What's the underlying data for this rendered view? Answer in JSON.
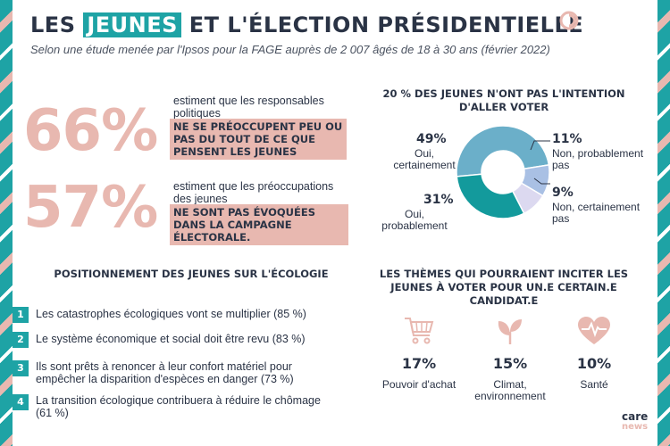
{
  "header": {
    "title_pre": "LES",
    "title_highlight": "JEUNES",
    "title_post": "ET L'ÉLECTION PRÉSIDENTIELLE",
    "subtitle": "Selon une étude menée par l'Ipsos pour la FAGE auprès de 2 007 âgés de 18 à 30 ans (février 2022)"
  },
  "stats": [
    {
      "percent": "66%",
      "intro": "estiment que les responsables politiques",
      "highlight": "NE SE PRÉOCCUPENT PEU OU PAS DU TOUT DE CE QUE PENSENT LES JEUNES"
    },
    {
      "percent": "57%",
      "intro": "estiment que les préoccupations des jeunes",
      "highlight": "NE SONT PAS ÉVOQUÉES DANS LA CAMPAGNE ÉLECTORALE."
    }
  ],
  "chart_data": {
    "type": "pie",
    "title": "20 % DES JEUNES N'ONT PAS L'INTENTION D'ALLER VOTER",
    "slices": [
      {
        "pct_label": "49%",
        "label": "Oui, certainement",
        "value": 49,
        "color": "#6bafc9"
      },
      {
        "pct_label": "11%",
        "label": "Non, probablement pas",
        "value": 11,
        "color": "#a9c0e4"
      },
      {
        "pct_label": "9%",
        "label": "Non, certainement pas",
        "value": 9,
        "color": "#dcd9f0"
      },
      {
        "pct_label": "31%",
        "label": "Oui, probablement",
        "value": 31,
        "color": "#139a9c"
      }
    ]
  },
  "ecology": {
    "title": "POSITIONNEMENT DES JEUNES SUR L'ÉCOLOGIE",
    "items": [
      {
        "num": "1",
        "text": "Les catastrophes écologiques vont se multiplier (85 %)"
      },
      {
        "num": "2",
        "text": "Le système économique et social doit être revu (83 %)"
      },
      {
        "num": "3",
        "text": "Ils sont prêts à renoncer à leur confort matériel pour empêcher la disparition d'espèces en danger (73 %)"
      },
      {
        "num": "4",
        "text": "La transition écologique contribuera à réduire le chômage (61 %)"
      }
    ]
  },
  "themes": {
    "title": "LES THÈMES QUI POURRAIENT INCITER LES JEUNES À VOTER POUR UN.E CERTAIN.E CANDIDAT.E",
    "items": [
      {
        "icon": "shopping-cart-icon",
        "pct": "17%",
        "label": "Pouvoir d'achat"
      },
      {
        "icon": "plant-icon",
        "pct": "15%",
        "label": "Climat, environnement"
      },
      {
        "icon": "heart-pulse-icon",
        "pct": "10%",
        "label": "Santé"
      }
    ]
  },
  "brand": {
    "line1": "care",
    "line2": "news"
  },
  "colors": {
    "teal": "#1ea3a5",
    "pink": "#e8b8b0",
    "navy": "#2a3345"
  }
}
